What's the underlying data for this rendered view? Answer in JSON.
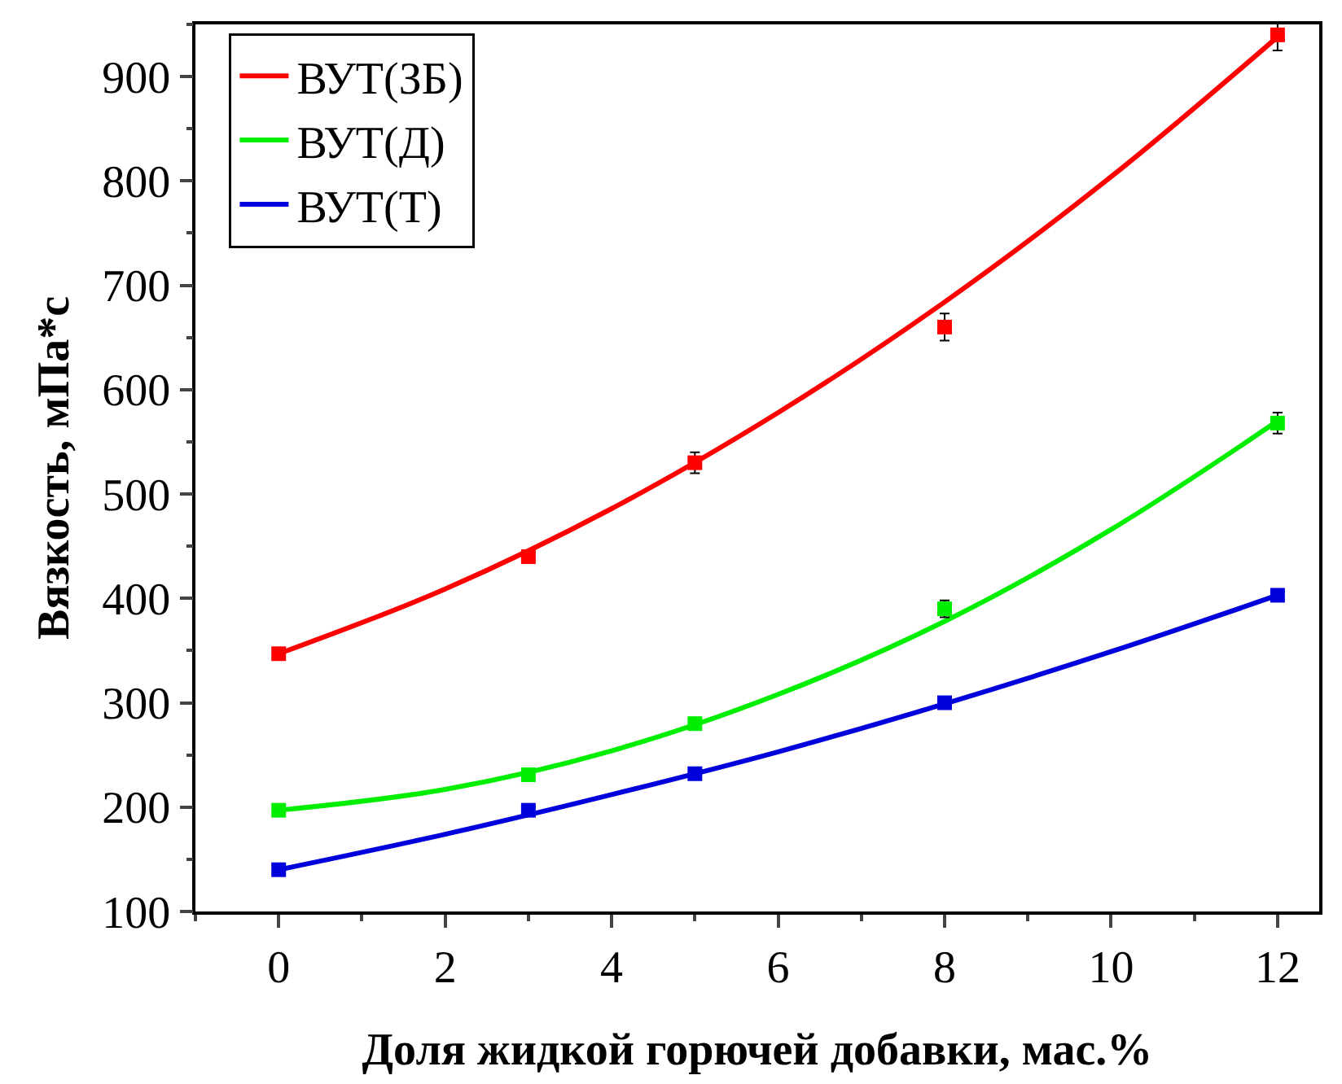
{
  "chart_data": {
    "type": "scatter",
    "xlabel": "Доля жидкой горючей добавки, мас.%",
    "ylabel": "Вязкость, мПа*с",
    "x": [
      0,
      3,
      5,
      8,
      12
    ],
    "xlim": [
      -1,
      12.5
    ],
    "xticks": [
      0,
      2,
      4,
      6,
      8,
      10,
      12
    ],
    "ylim": [
      100,
      950
    ],
    "yticks": [
      100,
      200,
      300,
      400,
      500,
      600,
      700,
      800,
      900
    ],
    "grid": false,
    "legend": "top left",
    "marker": "square",
    "series": [
      {
        "type": "line",
        "name": "ВУТ(ЗБ)",
        "color": "#ff0000",
        "x": [
          0,
          2,
          4,
          6,
          8,
          10,
          12
        ],
        "values": [
          347,
          409,
          486,
          578,
          684,
          804,
          938
        ],
        "line_style": "solid",
        "marker": "none"
      },
      {
        "type": "line",
        "name": "ВУТ(Д)",
        "color": "#00ee00",
        "x": [
          0,
          2,
          4,
          6,
          8,
          10,
          12
        ],
        "values": [
          197,
          217,
          254,
          308,
          378,
          466,
          570
        ],
        "line_style": "solid",
        "marker": "none"
      },
      {
        "type": "line",
        "name": "ВУТ(Т)",
        "color": "#0000dd",
        "x": [
          0,
          2,
          4,
          6,
          8,
          10,
          12
        ],
        "values": [
          140,
          174,
          212,
          253,
          299,
          349,
          403
        ],
        "line_style": "solid",
        "marker": "none"
      },
      {
        "color": "#ff0000",
        "values": [
          347,
          440,
          530,
          660,
          940
        ],
        "errors": [
          null,
          null,
          10,
          13,
          15
        ]
      },
      {
        "color": "#00ee00",
        "values": [
          197,
          231,
          280,
          390,
          568
        ],
        "errors": [
          null,
          null,
          null,
          8,
          10
        ]
      },
      {
        "color": "#0000dd",
        "values": [
          140,
          197,
          232,
          300,
          403
        ]
      }
    ]
  }
}
